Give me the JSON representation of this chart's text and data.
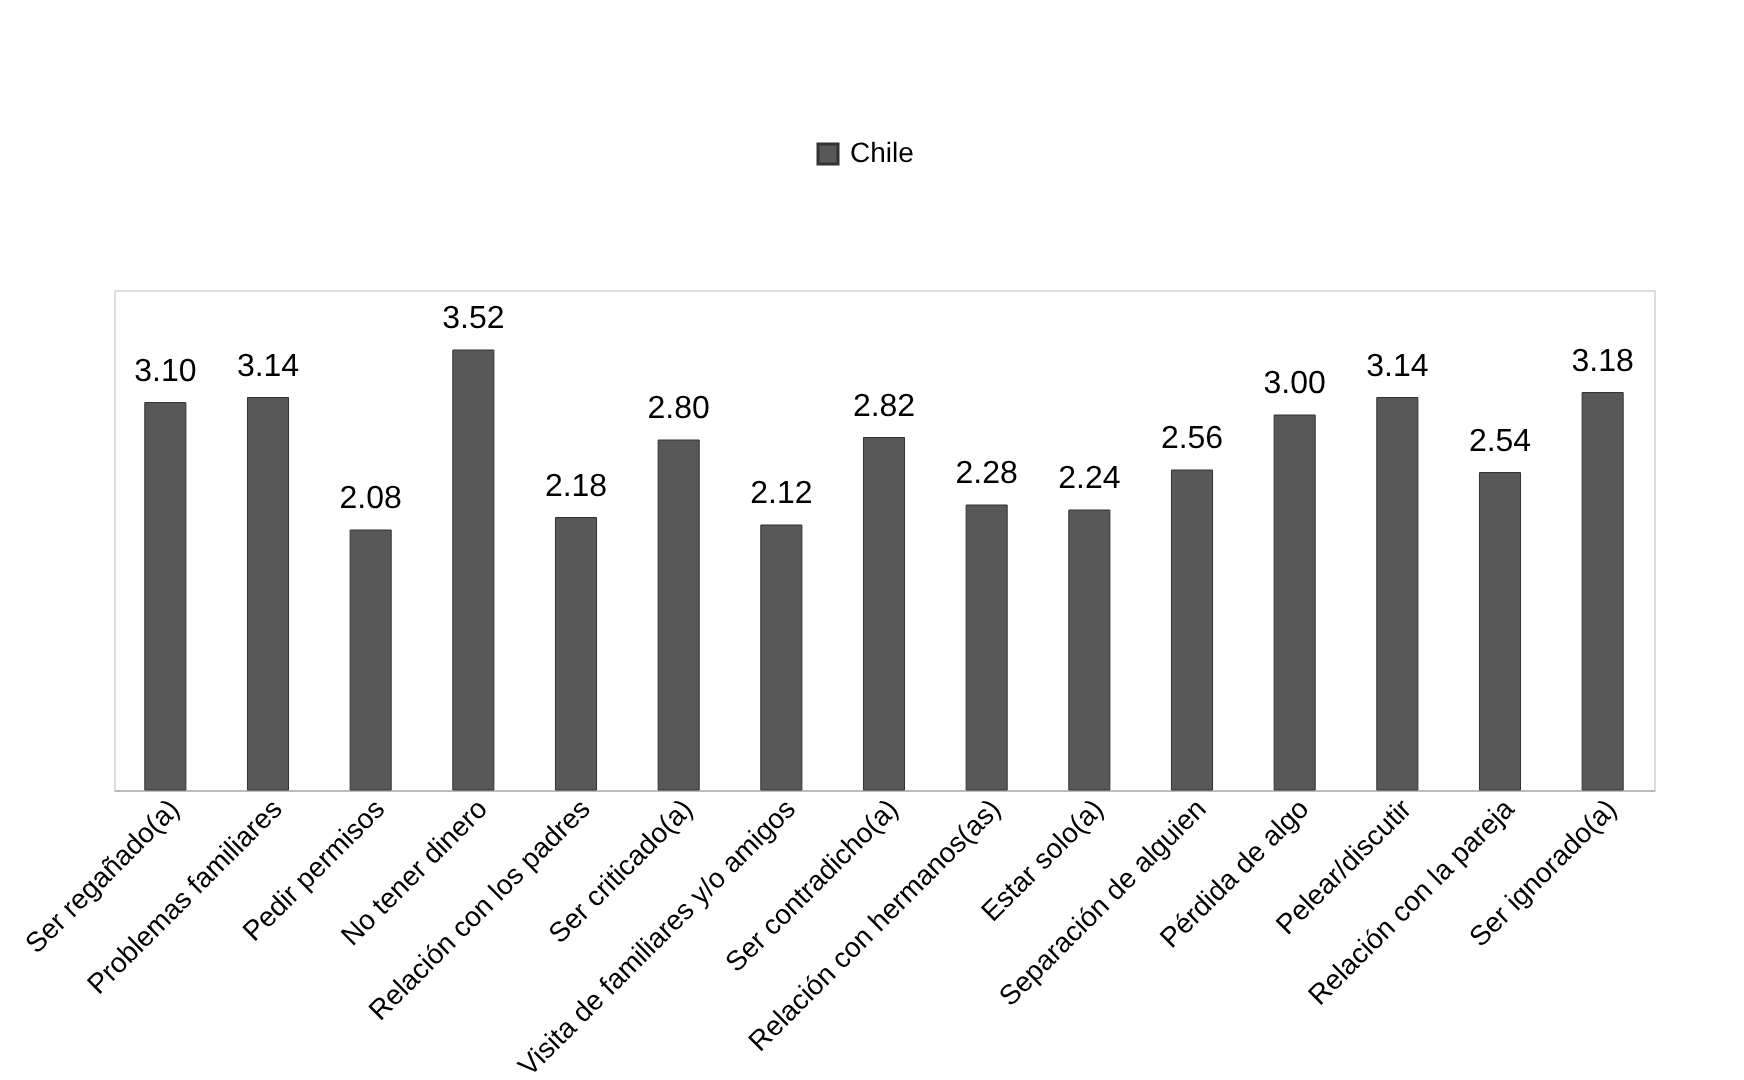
{
  "chart_data": {
    "type": "bar",
    "categories": [
      "Ser regañado(a)",
      "Problemas familiares",
      "Pedir permisos",
      "No tener dinero",
      "Relación con los padres",
      "Ser criticado(a)",
      "Visita de familiares y/o amigos",
      "Ser contradicho(a)",
      "Relación con hermanos(as)",
      "Estar solo(a)",
      "Separación de alguien",
      "Pérdida de algo",
      "Pelear/discutir",
      "Relación con la pareja",
      "Ser ignorado(a)"
    ],
    "series": [
      {
        "name": "Chile",
        "color": "#585858",
        "values": [
          3.1,
          3.14,
          2.08,
          3.52,
          2.18,
          2.8,
          2.12,
          2.82,
          2.28,
          2.24,
          2.56,
          3.0,
          3.14,
          2.54,
          3.18
        ],
        "value_labels": [
          "3.10",
          "3.14",
          "2.08",
          "3.52",
          "2.18",
          "2.80",
          "2.12",
          "2.82",
          "2.28",
          "2.24",
          "2.56",
          "3.00",
          "3.14",
          "2.54",
          "3.18"
        ]
      }
    ],
    "legend": "top",
    "grid": false,
    "tick_labels": "x"
  }
}
